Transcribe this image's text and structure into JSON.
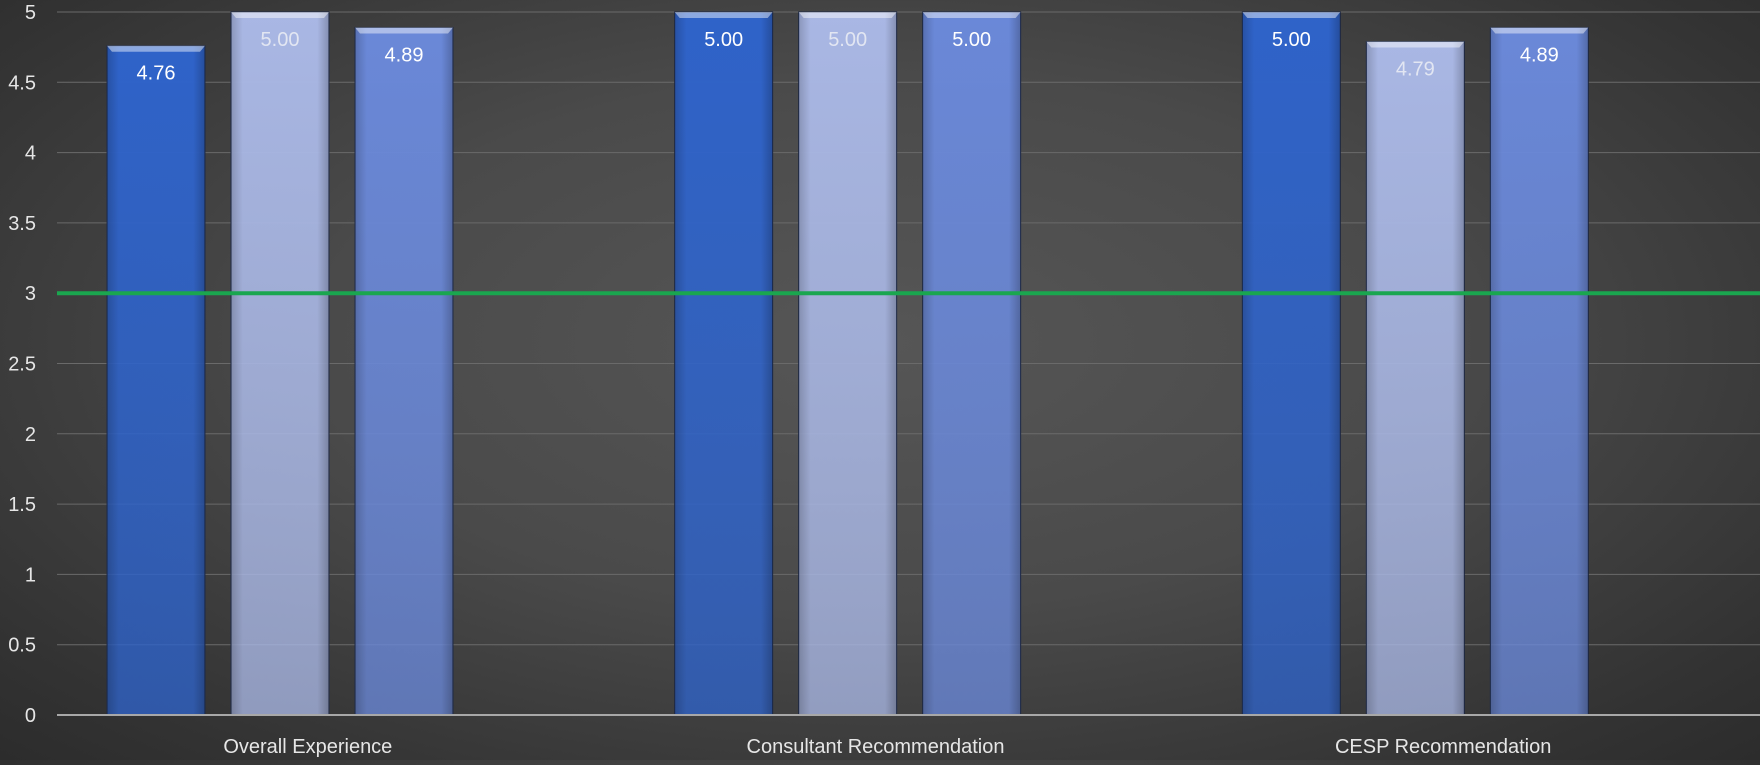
{
  "chart_data": {
    "type": "bar",
    "categories": [
      "Overall Experience",
      "Consultant Recommendation",
      "CESP Recommendation"
    ],
    "series": [
      {
        "values": [
          4.76,
          5.0,
          5.0
        ],
        "data_labels": [
          "4.76",
          "5.00",
          "5.00"
        ],
        "color": "#2f63c9",
        "label_color": "#ffffff"
      },
      {
        "values": [
          5.0,
          5.0,
          4.79
        ],
        "data_labels": [
          "5.00",
          "5.00",
          "4.79"
        ],
        "color": "#a9b7e4",
        "label_color": "#e2e6f2"
      },
      {
        "values": [
          4.89,
          5.0,
          4.89
        ],
        "data_labels": [
          "4.89",
          "5.00",
          "4.89"
        ],
        "color": "#6a88d8",
        "label_color": "#ffffff"
      }
    ],
    "yticks": [
      "0",
      "0.5",
      "1",
      "1.5",
      "2",
      "2.5",
      "3",
      "3.5",
      "4",
      "4.5",
      "5"
    ],
    "ylim": [
      0,
      5
    ],
    "reference_line": {
      "value": 3,
      "color": "#1aa64f"
    },
    "grid": true,
    "legend": false
  }
}
